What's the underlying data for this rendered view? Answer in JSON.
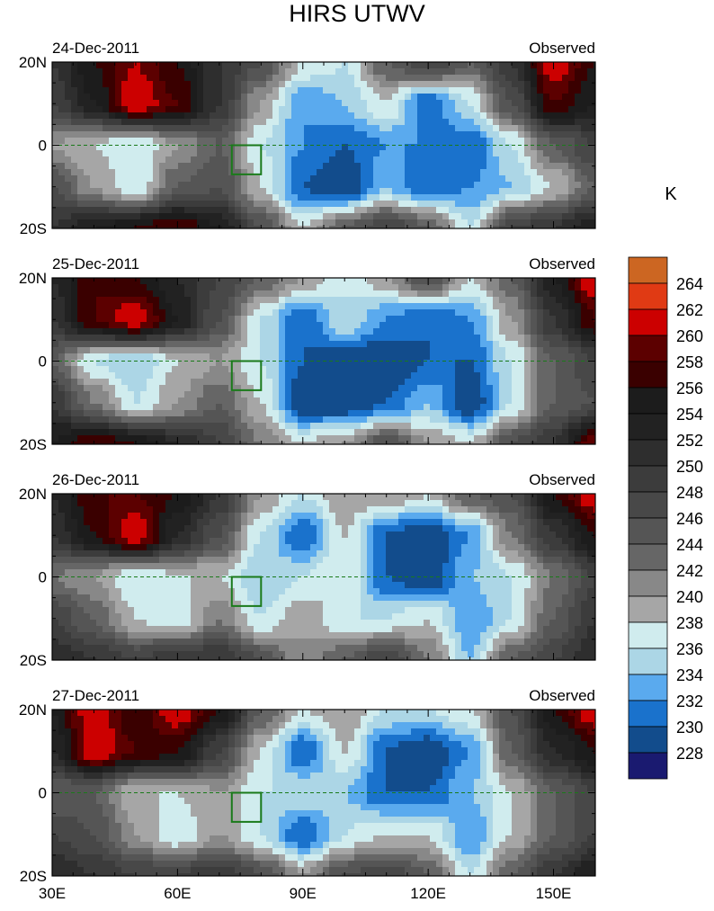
{
  "chart_data": {
    "type": "heatmap",
    "title": "HIRS UTWV",
    "units": "K",
    "lon_ticks": [
      "30E",
      "60E",
      "90E",
      "120E",
      "150E"
    ],
    "lon_tick_values": [
      30,
      60,
      90,
      120,
      150
    ],
    "lat_ticks": [
      "20N",
      "0",
      "20S"
    ],
    "lat_tick_values": [
      20,
      0,
      -20
    ],
    "xlim": [
      30,
      160
    ],
    "ylim": [
      -20,
      20
    ],
    "grid_lons": [
      30,
      40,
      50,
      60,
      70,
      80,
      90,
      100,
      110,
      120,
      130,
      140,
      150,
      160
    ],
    "grid_lats": [
      20,
      10,
      0,
      -10,
      -20
    ],
    "box": {
      "lon": [
        73,
        80
      ],
      "lat": [
        -7,
        0
      ]
    },
    "colorbar": {
      "levels": [
        228,
        230,
        232,
        234,
        236,
        238,
        240,
        242,
        244,
        246,
        248,
        250,
        252,
        254,
        256,
        258,
        260,
        262,
        264
      ],
      "colors": [
        "#1a1a70",
        "#124c8c",
        "#1a72cc",
        "#5aaaee",
        "#acd6e6",
        "#d0ecee",
        "#a6a6a6",
        "#888888",
        "#666666",
        "#555555",
        "#484848",
        "#3c3c3c",
        "#2e2e2e",
        "#222222",
        "#1c1c1c",
        "#3a0000",
        "#5c0000",
        "#cc0000",
        "#e03a14",
        "#cc6622"
      ]
    },
    "panels": [
      {
        "date": "24-Dec-2011",
        "label": "Observed",
        "values": [
          [
            250,
            256,
            260,
            256,
            250,
            246,
            238,
            236,
            244,
            248,
            244,
            250,
            262,
            256
          ],
          [
            248,
            254,
            262,
            258,
            250,
            240,
            232,
            234,
            238,
            230,
            236,
            246,
            258,
            254
          ],
          [
            240,
            238,
            236,
            240,
            244,
            236,
            232,
            230,
            232,
            232,
            230,
            236,
            244,
            248
          ],
          [
            246,
            240,
            236,
            244,
            246,
            238,
            230,
            228,
            234,
            230,
            232,
            234,
            238,
            244
          ],
          [
            250,
            254,
            256,
            258,
            254,
            246,
            238,
            244,
            248,
            244,
            236,
            248,
            250,
            254
          ]
        ]
      },
      {
        "date": "25-Dec-2011",
        "label": "Observed",
        "values": [
          [
            252,
            258,
            256,
            252,
            248,
            244,
            240,
            236,
            240,
            246,
            238,
            244,
            254,
            262
          ],
          [
            250,
            258,
            262,
            254,
            246,
            236,
            230,
            236,
            232,
            230,
            232,
            240,
            250,
            258
          ],
          [
            244,
            236,
            234,
            238,
            240,
            236,
            230,
            228,
            228,
            230,
            230,
            236,
            244,
            248
          ],
          [
            250,
            242,
            236,
            240,
            244,
            238,
            228,
            228,
            230,
            234,
            228,
            236,
            244,
            246
          ],
          [
            254,
            258,
            256,
            252,
            248,
            242,
            238,
            240,
            246,
            240,
            238,
            246,
            250,
            260
          ]
        ]
      },
      {
        "date": "26-Dec-2011",
        "label": "Observed",
        "values": [
          [
            252,
            258,
            258,
            256,
            250,
            240,
            236,
            240,
            240,
            238,
            244,
            246,
            256,
            262
          ],
          [
            250,
            256,
            262,
            252,
            246,
            236,
            230,
            238,
            230,
            228,
            232,
            242,
            250,
            256
          ],
          [
            242,
            240,
            236,
            238,
            238,
            234,
            236,
            238,
            230,
            228,
            234,
            236,
            242,
            248
          ],
          [
            248,
            244,
            238,
            236,
            242,
            236,
            240,
            236,
            236,
            238,
            232,
            236,
            244,
            250
          ],
          [
            252,
            250,
            248,
            250,
            250,
            246,
            240,
            244,
            248,
            242,
            234,
            244,
            248,
            252
          ]
        ]
      },
      {
        "date": "27-Dec-2011",
        "label": "Observed",
        "values": [
          [
            254,
            262,
            256,
            262,
            256,
            244,
            238,
            240,
            236,
            236,
            238,
            246,
            256,
            262
          ],
          [
            252,
            262,
            258,
            256,
            248,
            238,
            230,
            238,
            230,
            228,
            232,
            244,
            252,
            256
          ],
          [
            244,
            244,
            238,
            238,
            240,
            236,
            236,
            234,
            230,
            230,
            234,
            238,
            244,
            248
          ],
          [
            248,
            246,
            240,
            236,
            240,
            236,
            230,
            236,
            238,
            238,
            232,
            238,
            244,
            248
          ],
          [
            252,
            250,
            248,
            248,
            250,
            246,
            240,
            246,
            248,
            244,
            236,
            244,
            250,
            254
          ]
        ]
      }
    ]
  }
}
